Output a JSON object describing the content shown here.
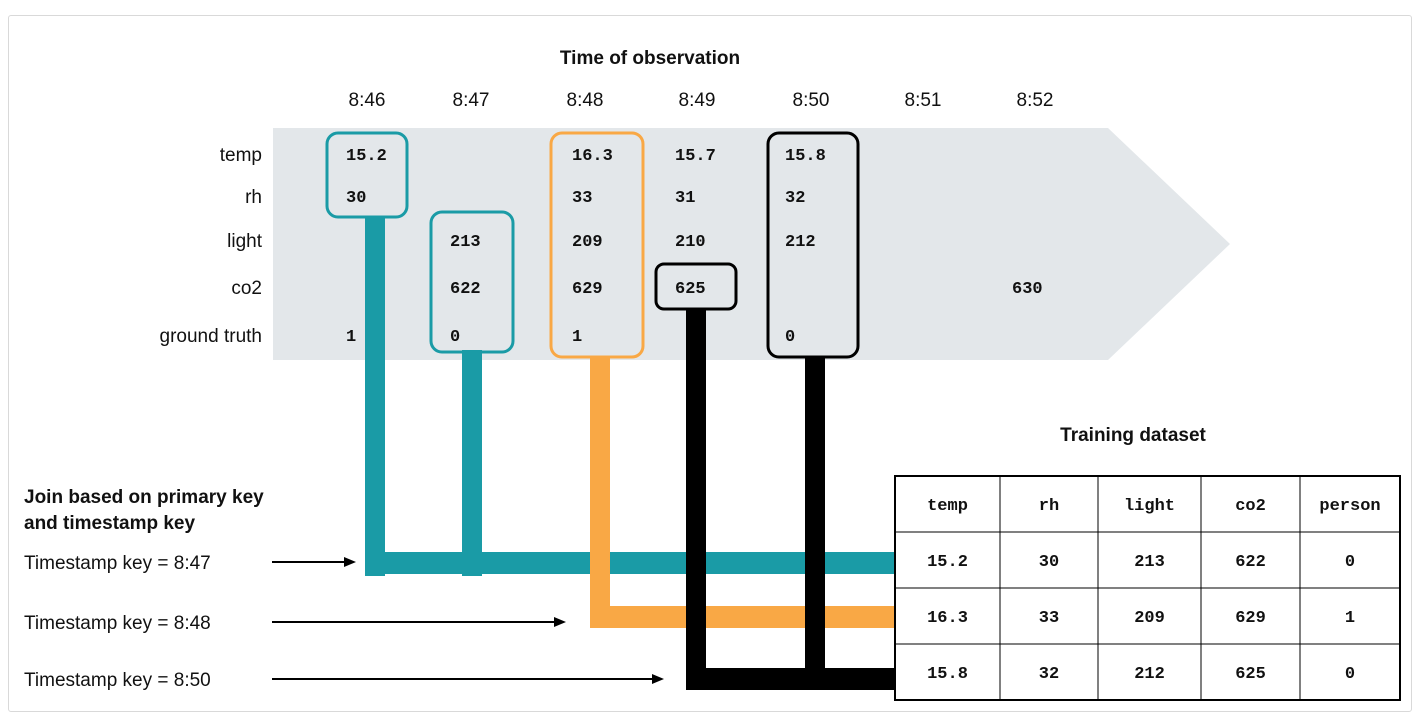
{
  "title": "Time of observation",
  "times": [
    "8:46",
    "8:47",
    "8:48",
    "8:49",
    "8:50",
    "8:51",
    "8:52"
  ],
  "row_labels": [
    "temp",
    "rh",
    "light",
    "co2",
    "ground truth"
  ],
  "observations": {
    "temp": [
      "15.2",
      "",
      "16.3",
      "15.7",
      "15.8",
      "",
      ""
    ],
    "rh": [
      "30",
      "",
      "33",
      "31",
      "32",
      "",
      ""
    ],
    "light": [
      "",
      "213",
      "209",
      "210",
      "212",
      "",
      ""
    ],
    "co2": [
      "",
      "622",
      "629",
      "625",
      "",
      "",
      "630"
    ],
    "ground_truth": [
      "1",
      "0",
      "1",
      "",
      "0",
      "",
      ""
    ]
  },
  "join_caption": [
    "Join based on primary key",
    "and timestamp key"
  ],
  "timestamp_keys": [
    "Timestamp key = 8:47",
    "Timestamp key = 8:48",
    "Timestamp key = 8:50"
  ],
  "training": {
    "title": "Training dataset",
    "headers": [
      "temp",
      "rh",
      "light",
      "co2",
      "person"
    ],
    "rows": [
      [
        "15.2",
        "30",
        "213",
        "622",
        "0"
      ],
      [
        "16.3",
        "33",
        "209",
        "629",
        "1"
      ],
      [
        "15.8",
        "32",
        "212",
        "625",
        "0"
      ]
    ]
  },
  "colors": {
    "teal": "#1a9ba6",
    "orange": "#f9a845",
    "black": "#000000",
    "band": "#e3e7ea"
  }
}
